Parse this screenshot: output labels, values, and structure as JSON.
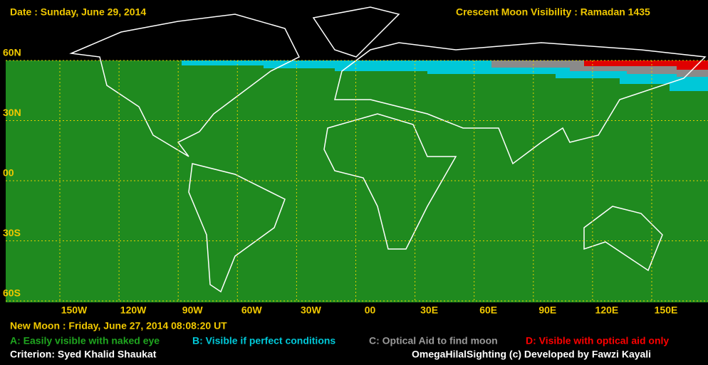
{
  "header": {
    "date": "Date : Sunday, June 29, 2014",
    "title": "Crescent Moon Visibility : Ramadan  1435"
  },
  "lat_labels": [
    "60N",
    "30N",
    "00",
    "30S",
    "60S"
  ],
  "lon_labels": [
    "150W",
    "120W",
    "90W",
    "60W",
    "30W",
    "00",
    "30E",
    "60E",
    "90E",
    "120E",
    "150E"
  ],
  "footer": {
    "new_moon": "New Moon : Friday, June 27, 2014  08:08:20  UT",
    "legend": [
      "A: Easily visible with naked eye",
      "B: Visible if perfect conditions",
      "C: Optical Aid to find moon",
      "D: Visible with optical aid only"
    ],
    "criterion": "Criterion: Syed Khalid Shaukat",
    "credit": "OmegaHilalSighting  (c)  Developed by Fawzi Kayali"
  }
}
